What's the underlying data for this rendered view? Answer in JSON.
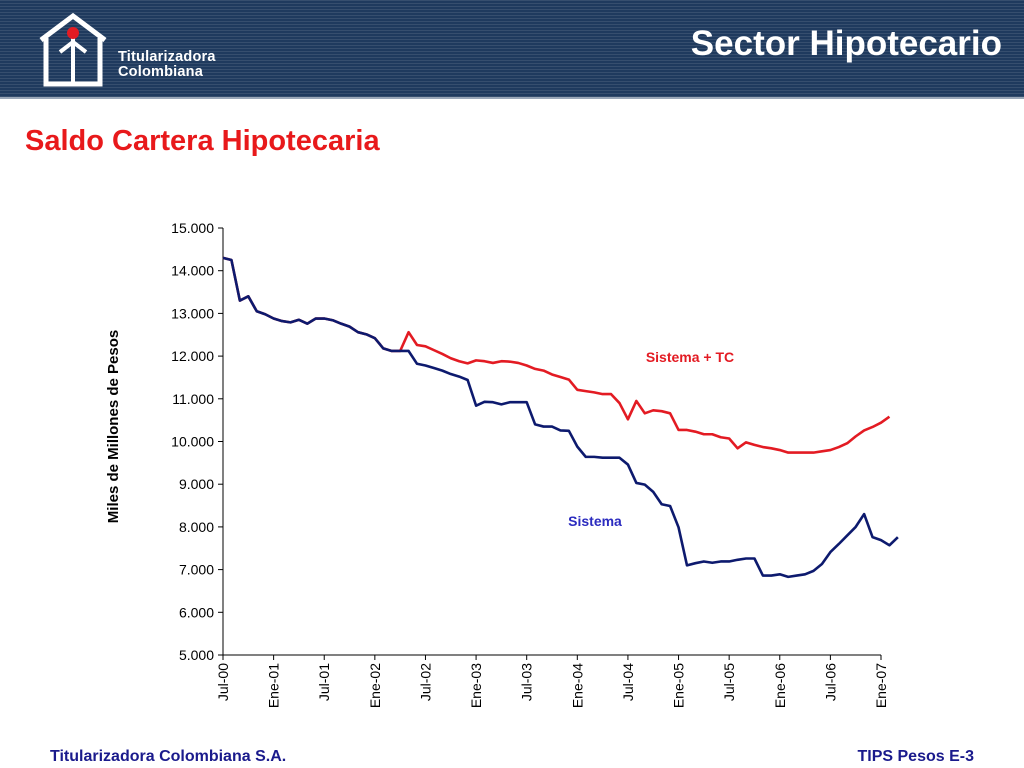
{
  "header": {
    "title": "Sector Hipotecario",
    "logo_line1": "Titularizadora",
    "logo_line2": "Colombiana"
  },
  "page_title": "Saldo Cartera Hipotecaria",
  "footer": {
    "left": "Titularizadora Colombiana S.A.",
    "right": "TIPS Pesos E-3"
  },
  "colors": {
    "header_bg": "#1f3a5e",
    "title_red": "#e8191b",
    "footer_blue": "#1a1a8c",
    "series_red": "#e31b23",
    "series_navy": "#0d1a6e"
  },
  "chart_data": {
    "type": "line",
    "title": "",
    "xlabel": "",
    "ylabel": "Miles de Millones de Pesos",
    "ylim": [
      5000,
      15000
    ],
    "yticks": [
      5000,
      6000,
      7000,
      8000,
      9000,
      10000,
      11000,
      12000,
      13000,
      14000,
      15000
    ],
    "ytick_labels": [
      "5.000",
      "6.000",
      "7.000",
      "8.000",
      "9.000",
      "10.000",
      "11.000",
      "12.000",
      "13.000",
      "14.000",
      "15.000"
    ],
    "x_tick_labels": [
      "Jul-00",
      "Ene-01",
      "Jul-01",
      "Ene-02",
      "Jul-02",
      "Ene-03",
      "Jul-03",
      "Ene-04",
      "Jul-04",
      "Ene-05",
      "Jul-05",
      "Ene-06",
      "Jul-06",
      "Ene-07"
    ],
    "grid": false,
    "series": [
      {
        "name": "Sistema + TC",
        "label": "Sistema + TC",
        "color": "#e31b23",
        "values": [
          14300,
          14250,
          13300,
          13400,
          13050,
          12980,
          12880,
          12820,
          12790,
          12850,
          12760,
          12880,
          12880,
          12840,
          12760,
          12690,
          12560,
          12510,
          12420,
          12180,
          12120,
          12120,
          12560,
          12260,
          12230,
          12140,
          12050,
          11950,
          11880,
          11830,
          11900,
          11880,
          11840,
          11880,
          11870,
          11840,
          11780,
          11700,
          11660,
          11570,
          11510,
          11450,
          11210,
          11180,
          11150,
          11110,
          11110,
          10900,
          10520,
          10950,
          10660,
          10730,
          10710,
          10660,
          10270,
          10270,
          10230,
          10170,
          10170,
          10100,
          10070,
          9840,
          9980,
          9920,
          9870,
          9840,
          9800,
          9740,
          9740,
          9740,
          9740,
          9770,
          9800,
          9870,
          9960,
          10120,
          10260,
          10340,
          10440,
          10580
        ]
      },
      {
        "name": "Sistema",
        "label": "Sistema",
        "color": "#0d1a6e",
        "values": [
          14300,
          14250,
          13300,
          13400,
          13050,
          12980,
          12880,
          12820,
          12790,
          12850,
          12760,
          12880,
          12880,
          12840,
          12760,
          12690,
          12560,
          12510,
          12420,
          12180,
          12120,
          12120,
          12120,
          11820,
          11780,
          11720,
          11660,
          11580,
          11520,
          11440,
          10840,
          10930,
          10920,
          10870,
          10920,
          10920,
          10920,
          10400,
          10350,
          10350,
          10260,
          10250,
          9880,
          9640,
          9640,
          9620,
          9620,
          9620,
          9460,
          9030,
          8990,
          8820,
          8530,
          8490,
          7990,
          7100,
          7150,
          7190,
          7160,
          7190,
          7190,
          7230,
          7260,
          7260,
          6860,
          6860,
          6890,
          6830,
          6860,
          6890,
          6970,
          7130,
          7410,
          7600,
          7800,
          8000,
          8300,
          7760,
          7690,
          7570,
          7760
        ]
      }
    ]
  }
}
